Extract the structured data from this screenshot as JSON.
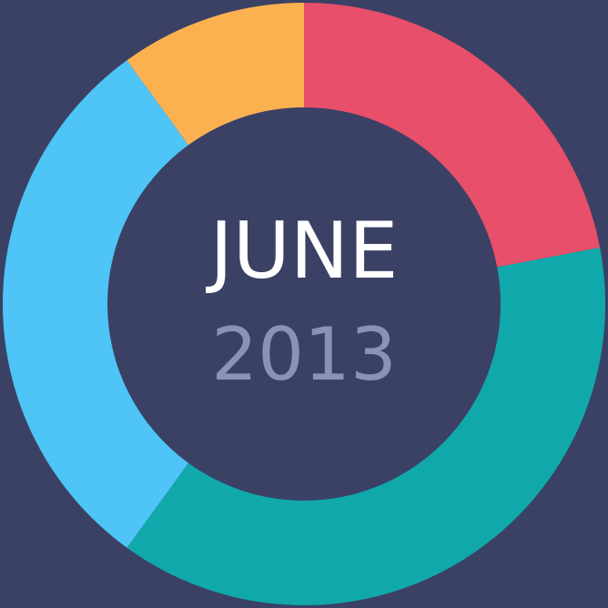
{
  "colors": {
    "background": "#3a4164",
    "month_text": "#ffffff",
    "year_text": "#8a92b8"
  },
  "center": {
    "month": "JUNE",
    "year": "2013"
  },
  "chart_data": {
    "type": "pie",
    "style": "donut",
    "start_angle_deg": 0,
    "direction": "clockwise",
    "slices": [
      {
        "value": 22,
        "color": "#e84f6a"
      },
      {
        "value": 38,
        "color": "#11a8ab"
      },
      {
        "value": 30,
        "color": "#4fc4f7"
      },
      {
        "value": 10,
        "color": "#fcb150"
      }
    ],
    "legend": "none"
  }
}
